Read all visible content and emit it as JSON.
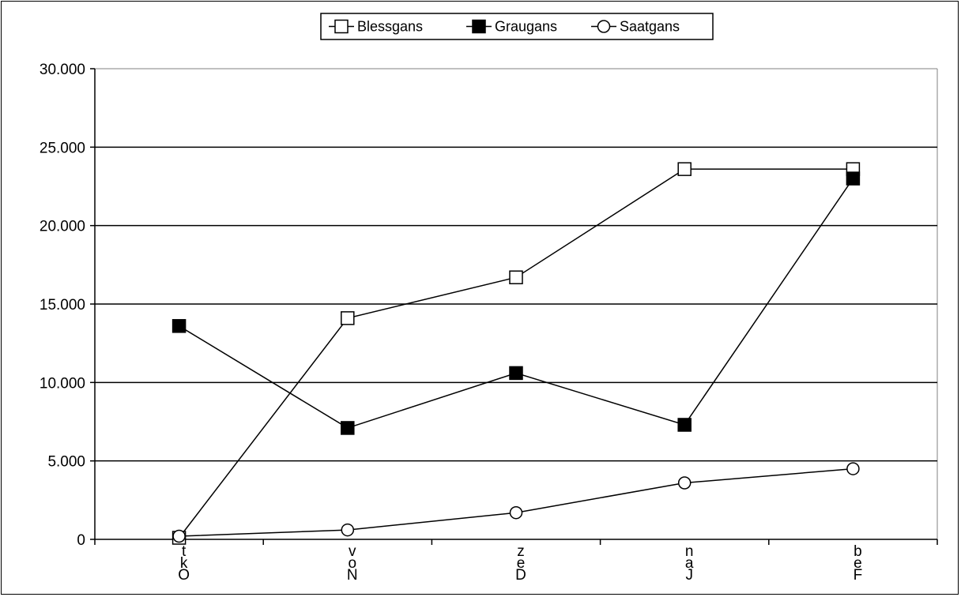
{
  "chart_data": {
    "type": "line",
    "title": "",
    "xlabel": "",
    "ylabel": "",
    "categories": [
      "Okt",
      "Nov",
      "Dez",
      "Jan",
      "Feb"
    ],
    "category_display": [
      [
        "t",
        "k",
        "O"
      ],
      [
        "v",
        "o",
        "N"
      ],
      [
        "z",
        "e",
        "D"
      ],
      [
        "n",
        "a",
        "J"
      ],
      [
        "b",
        "e",
        "F"
      ]
    ],
    "ylim": [
      0,
      30000
    ],
    "y_ticks": [
      0,
      5000,
      10000,
      15000,
      20000,
      25000,
      30000
    ],
    "y_tick_labels": [
      "0",
      "5.000",
      "10.000",
      "15.000",
      "20.000",
      "25.000",
      "30.000"
    ],
    "grid": true,
    "legend_position": "top-center",
    "series": [
      {
        "name": "Blessgans",
        "marker": "square-open",
        "values": [
          100,
          14100,
          16700,
          23600,
          23600
        ]
      },
      {
        "name": "Graugans",
        "marker": "square-filled",
        "values": [
          13600,
          7100,
          10600,
          7300,
          23000
        ]
      },
      {
        "name": "Saatgans",
        "marker": "circle-open",
        "values": [
          200,
          600,
          1700,
          3600,
          4500
        ]
      }
    ],
    "colors": {
      "line": "#000000",
      "grid": "#000000",
      "fill_open": "#ffffff",
      "fill_solid": "#000000"
    }
  }
}
